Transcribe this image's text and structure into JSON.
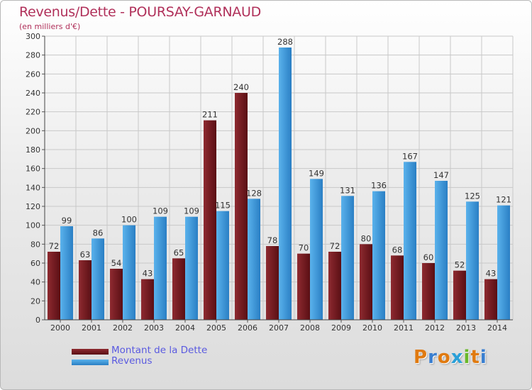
{
  "header": {
    "title": "Revenus/Dette - POURSAY-GARNAUD",
    "subtitle": "(en milliers d'€)"
  },
  "colors": {
    "title": "#b0305a",
    "dette_dark": "#5a0f14",
    "dette_light": "#8e2a30",
    "revenus_dark": "#2a7fc4",
    "revenus_light": "#5ab2ec",
    "legend_text": "#5a5ae0"
  },
  "legend": {
    "items": [
      {
        "label": "Montant de la Dette",
        "icon": "dark-red-swatch"
      },
      {
        "label": "Revenus",
        "icon": "blue-swatch"
      }
    ]
  },
  "logo": {
    "text": "Proxiti",
    "letters": [
      {
        "ch": "P",
        "color": "#e07a10"
      },
      {
        "ch": "r",
        "color": "#3a7fd0"
      },
      {
        "ch": "o",
        "color": "#e07a10"
      },
      {
        "ch": "x",
        "color": "#2aa0d8"
      },
      {
        "ch": "i",
        "color": "#6ab82a"
      },
      {
        "ch": "t",
        "color": "#e07a10"
      },
      {
        "ch": "i",
        "color": "#3a7fd0"
      }
    ]
  },
  "chart_data": {
    "type": "bar",
    "title": "Revenus/Dette - POURSAY-GARNAUD",
    "subtitle": "(en milliers d'€)",
    "categories": [
      "2000",
      "2001",
      "2002",
      "2003",
      "2004",
      "2005",
      "2006",
      "2007",
      "2008",
      "2009",
      "2010",
      "2011",
      "2012",
      "2013",
      "2014"
    ],
    "series": [
      {
        "name": "Montant de la Dette",
        "values": [
          72,
          63,
          54,
          43,
          65,
          211,
          240,
          78,
          70,
          72,
          80,
          68,
          60,
          52,
          43
        ]
      },
      {
        "name": "Revenus",
        "values": [
          99,
          86,
          100,
          109,
          109,
          115,
          128,
          288,
          149,
          131,
          136,
          167,
          147,
          125,
          121
        ]
      }
    ],
    "ylim": [
      0,
      300
    ],
    "yticks": [
      0,
      20,
      40,
      60,
      80,
      100,
      120,
      140,
      160,
      180,
      200,
      220,
      240,
      260,
      280,
      300
    ],
    "grid": true,
    "legend_position": "bottom-left",
    "data_labels": true
  }
}
